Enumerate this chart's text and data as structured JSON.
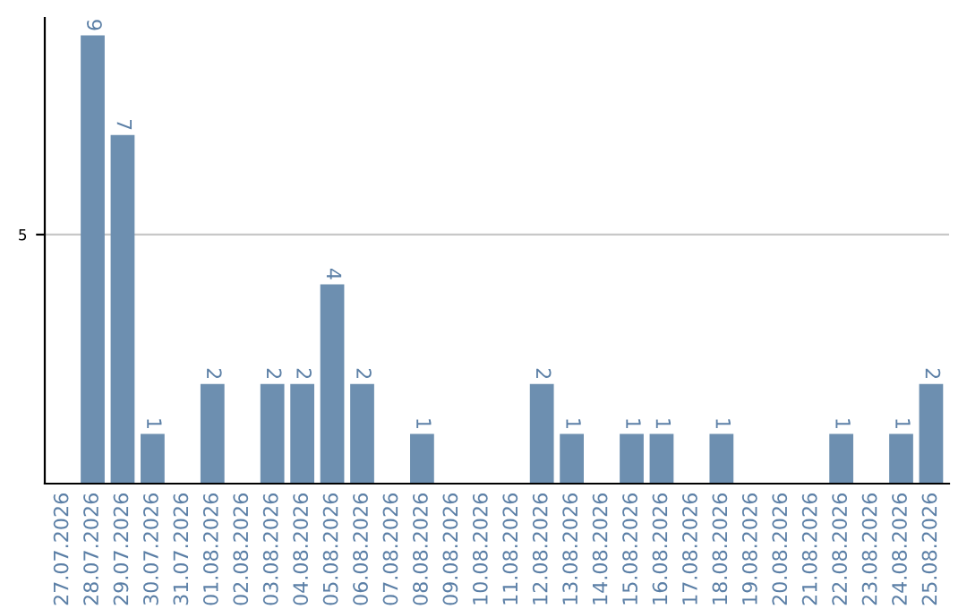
{
  "chart_data": {
    "type": "bar",
    "categories": [
      "27.07.2026",
      "28.07.2026",
      "29.07.2026",
      "30.07.2026",
      "31.07.2026",
      "01.08.2026",
      "02.08.2026",
      "03.08.2026",
      "04.08.2026",
      "05.08.2026",
      "06.08.2026",
      "07.08.2026",
      "08.08.2026",
      "09.08.2026",
      "10.08.2026",
      "11.08.2026",
      "12.08.2026",
      "13.08.2026",
      "14.08.2026",
      "15.08.2026",
      "16.08.2026",
      "17.08.2026",
      "18.08.2026",
      "19.08.2026",
      "20.08.2026",
      "21.08.2026",
      "22.08.2026",
      "23.08.2026",
      "24.08.2026",
      "25.08.2026"
    ],
    "values": [
      0,
      9,
      7,
      1,
      0,
      2,
      0,
      2,
      2,
      4,
      2,
      0,
      1,
      0,
      0,
      0,
      2,
      1,
      0,
      1,
      1,
      0,
      1,
      0,
      0,
      0,
      1,
      0,
      1,
      2
    ],
    "value_labels": [
      null,
      "9",
      "7",
      "1",
      null,
      "2",
      null,
      "2",
      "2",
      "4",
      "2",
      null,
      "1",
      null,
      null,
      null,
      "2",
      "1",
      null,
      "1",
      "1",
      null,
      "1",
      null,
      null,
      null,
      "1",
      null,
      "1",
      "2"
    ],
    "color": "#6d8fb0",
    "ylim": [
      0,
      9.35
    ],
    "yticks": [
      5
    ],
    "grid": "y",
    "legend": false
  }
}
